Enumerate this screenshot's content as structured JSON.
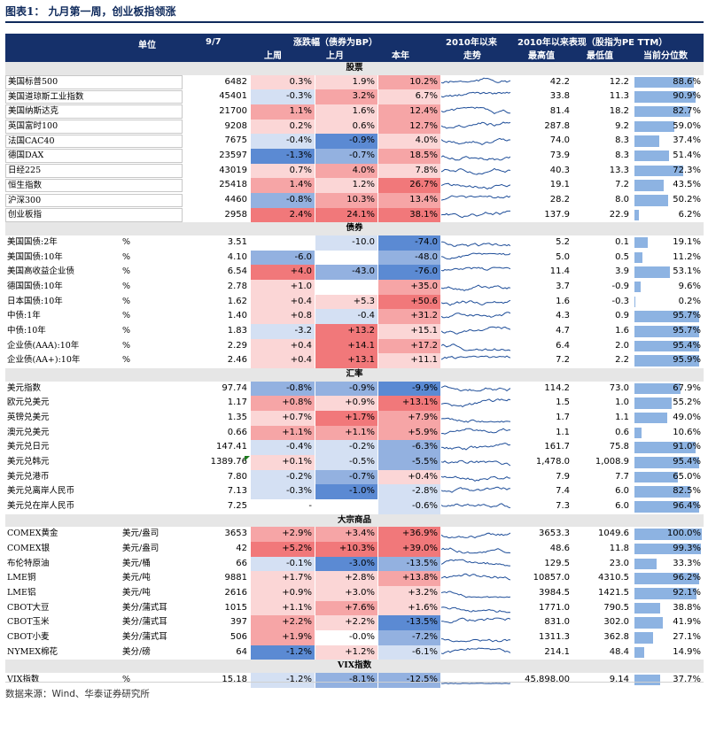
{
  "title": "图表1： 九月第一周，创业板指领涨",
  "header": {
    "unit": "单位",
    "date": "9/7",
    "change_group": "涨跌幅（债券为BP）",
    "week": "上周",
    "month": "上月",
    "ytd": "本年",
    "trend_top": "2010年以来",
    "trend_bottom": "走势",
    "since2010": "2010年以来表现（股指为PE TTM）",
    "high": "最高值",
    "low": "最低值",
    "pctile": "当前分位数"
  },
  "colors": {
    "header_bg": "#15306a",
    "section_bg": "#e6e6e6",
    "red_strong": "#f1787a",
    "red_mid": "#f6a5a6",
    "red_light": "#fbd6d6",
    "blue_strong": "#5b8ad3",
    "blue_mid": "#93b1e0",
    "blue_light": "#d4e0f3",
    "spark": "#1f4e99",
    "pct_bar": "#8db3e2"
  },
  "sections": [
    {
      "title": "股票",
      "rows": [
        {
          "name": "美国标普500",
          "unit": "",
          "value": "6482",
          "week": "0.3%",
          "month": "1.9%",
          "ytd": "10.2%",
          "high": "42.2",
          "low": "12.2",
          "pctile": "88.6%",
          "p": 0.886,
          "cw": 0.15,
          "cm": 0.3,
          "cy": 0.45,
          "box": true
        },
        {
          "name": "美国道琼斯工业指数",
          "unit": "",
          "value": "45401",
          "week": "-0.3%",
          "month": "3.2%",
          "ytd": "6.7%",
          "high": "33.8",
          "low": "11.3",
          "pctile": "90.9%",
          "p": 0.909,
          "cw": -0.15,
          "cm": 0.4,
          "cy": 0.3,
          "box": true
        },
        {
          "name": "美国纳斯达克",
          "unit": "",
          "value": "21700",
          "week": "1.1%",
          "month": "1.6%",
          "ytd": "12.4%",
          "high": "81.4",
          "low": "18.2",
          "pctile": "82.7%",
          "p": 0.827,
          "cw": 0.45,
          "cm": 0.3,
          "cy": 0.5,
          "box": true
        },
        {
          "name": "英国富时100",
          "unit": "",
          "value": "9208",
          "week": "0.2%",
          "month": "0.6%",
          "ytd": "12.7%",
          "high": "287.8",
          "low": "9.2",
          "pctile": "59.0%",
          "p": 0.59,
          "cw": 0.1,
          "cm": 0.15,
          "cy": 0.5,
          "box": true
        },
        {
          "name": "法国CAC40",
          "unit": "",
          "value": "7675",
          "week": "-0.4%",
          "month": "-0.9%",
          "ytd": "4.0%",
          "high": "74.0",
          "low": "8.3",
          "pctile": "37.4%",
          "p": 0.374,
          "cw": -0.3,
          "cm": -0.8,
          "cy": 0.15,
          "box": true
        },
        {
          "name": "德国DAX",
          "unit": "",
          "value": "23597",
          "week": "-1.3%",
          "month": "-0.7%",
          "ytd": "18.5%",
          "high": "73.9",
          "low": "8.3",
          "pctile": "51.4%",
          "p": 0.514,
          "cw": -0.8,
          "cm": -0.5,
          "cy": 0.6,
          "box": true
        },
        {
          "name": "日经225",
          "unit": "",
          "value": "43019",
          "week": "0.7%",
          "month": "4.0%",
          "ytd": "7.8%",
          "high": "40.3",
          "low": "13.3",
          "pctile": "72.3%",
          "p": 0.723,
          "cw": 0.3,
          "cm": 0.45,
          "cy": 0.3,
          "box": true
        },
        {
          "name": "恒生指数",
          "unit": "",
          "value": "25418",
          "week": "1.4%",
          "month": "1.2%",
          "ytd": "26.7%",
          "high": "19.1",
          "low": "7.2",
          "pctile": "43.5%",
          "p": 0.435,
          "cw": 0.55,
          "cm": 0.3,
          "cy": 0.85,
          "box": true
        },
        {
          "name": "沪深300",
          "unit": "",
          "value": "4460",
          "week": "-0.8%",
          "month": "10.3%",
          "ytd": "13.4%",
          "high": "28.2",
          "low": "8.0",
          "pctile": "50.2%",
          "p": 0.502,
          "cw": -0.5,
          "cm": 0.65,
          "cy": 0.5,
          "box": true
        },
        {
          "name": "创业板指",
          "unit": "",
          "value": "2958",
          "week": "2.4%",
          "month": "24.1%",
          "ytd": "38.1%",
          "high": "137.9",
          "low": "22.9",
          "pctile": "6.2%",
          "p": 0.062,
          "cw": 0.85,
          "cm": 0.9,
          "cy": 0.95,
          "box": true
        }
      ]
    },
    {
      "title": "债券",
      "rows": [
        {
          "name": "美国国债:2年",
          "unit": "%",
          "value": "3.51",
          "week": "",
          "month": "-10.0",
          "ytd": "-74.0",
          "high": "5.2",
          "low": "0.1",
          "pctile": "19.1%",
          "p": 0.191,
          "cw": 0,
          "cm": -0.15,
          "cy": -0.95
        },
        {
          "name": "美国国债:10年",
          "unit": "%",
          "value": "4.10",
          "week": "-6.0",
          "month": "",
          "ytd": "-48.0",
          "high": "5.0",
          "low": "0.5",
          "pctile": "11.2%",
          "p": 0.112,
          "cw": -0.55,
          "cm": 0,
          "cy": -0.6
        },
        {
          "name": "美国高收益企业债",
          "unit": "%",
          "value": "6.54",
          "week": "+4.0",
          "month": "-43.0",
          "ytd": "-76.0",
          "high": "11.4",
          "low": "3.9",
          "pctile": "53.1%",
          "p": 0.531,
          "cw": 0.85,
          "cm": -0.65,
          "cy": -0.95
        },
        {
          "name": "德国国债:10年",
          "unit": "%",
          "value": "2.78",
          "week": "+1.0",
          "month": "",
          "ytd": "+35.0",
          "high": "3.7",
          "low": "-0.9",
          "pctile": "9.6%",
          "p": 0.096,
          "cw": 0.2,
          "cm": 0,
          "cy": 0.55
        },
        {
          "name": "日本国债:10年",
          "unit": "%",
          "value": "1.62",
          "week": "+0.4",
          "month": "+5.3",
          "ytd": "+50.6",
          "high": "1.6",
          "low": "-0.3",
          "pctile": "0.2%",
          "p": 0.002,
          "cw": 0.1,
          "cm": 0.35,
          "cy": 0.8
        },
        {
          "name": "中债:1年",
          "unit": "%",
          "value": "1.40",
          "week": "+0.8",
          "month": "-0.4",
          "ytd": "+31.2",
          "high": "4.3",
          "low": "0.9",
          "pctile": "95.7%",
          "p": 0.957,
          "cw": 0.15,
          "cm": -0.1,
          "cy": 0.5
        },
        {
          "name": "中债:10年",
          "unit": "%",
          "value": "1.83",
          "week": "-3.2",
          "month": "+13.2",
          "ytd": "+15.1",
          "high": "4.7",
          "low": "1.6",
          "pctile": "95.7%",
          "p": 0.957,
          "cw": -0.35,
          "cm": 0.8,
          "cy": 0.35
        },
        {
          "name": "企业债(AAA):10年",
          "unit": "%",
          "value": "2.29",
          "week": "+0.4",
          "month": "+14.1",
          "ytd": "+17.2",
          "high": "6.4",
          "low": "2.0",
          "pctile": "95.4%",
          "p": 0.954,
          "cw": 0.1,
          "cm": 0.8,
          "cy": 0.4
        },
        {
          "name": "企业债(AA+):10年",
          "unit": "%",
          "value": "2.46",
          "week": "+0.4",
          "month": "+13.1",
          "ytd": "+11.1",
          "high": "7.2",
          "low": "2.2",
          "pctile": "95.9%",
          "p": 0.959,
          "cw": 0.1,
          "cm": 0.8,
          "cy": 0.3
        }
      ]
    },
    {
      "title": "汇率",
      "rows": [
        {
          "name": "美元指数",
          "unit": "",
          "value": "97.74",
          "week": "-0.8%",
          "month": "-0.9%",
          "ytd": "-9.9%",
          "high": "114.2",
          "low": "73.0",
          "pctile": "67.9%",
          "p": 0.679,
          "cw": -0.55,
          "cm": -0.5,
          "cy": -0.8
        },
        {
          "name": "欧元兑美元",
          "unit": "",
          "value": "1.17",
          "week": "+0.8%",
          "month": "+0.9%",
          "ytd": "+13.1%",
          "high": "1.5",
          "low": "1.0",
          "pctile": "55.2%",
          "p": 0.552,
          "cw": 0.4,
          "cm": 0.35,
          "cy": 0.9
        },
        {
          "name": "英镑兑美元",
          "unit": "",
          "value": "1.35",
          "week": "+0.7%",
          "month": "+1.7%",
          "ytd": "+7.9%",
          "high": "1.7",
          "low": "1.1",
          "pctile": "49.0%",
          "p": 0.49,
          "cw": 0.35,
          "cm": 0.8,
          "cy": 0.5
        },
        {
          "name": "澳元兑美元",
          "unit": "",
          "value": "0.66",
          "week": "+1.1%",
          "month": "+1.1%",
          "ytd": "+5.9%",
          "high": "1.1",
          "low": "0.6",
          "pctile": "10.6%",
          "p": 0.106,
          "cw": 0.7,
          "cm": 0.45,
          "cy": 0.4
        },
        {
          "name": "美元兑日元",
          "unit": "",
          "value": "147.41",
          "week": "-0.4%",
          "month": "-0.2%",
          "ytd": "-6.3%",
          "high": "161.7",
          "low": "75.8",
          "pctile": "91.0%",
          "p": 0.91,
          "cw": -0.2,
          "cm": -0.1,
          "cy": -0.5
        },
        {
          "name": "美元兑韩元",
          "unit": "",
          "value": "1389.76",
          "week": "+0.1%",
          "month": "-0.5%",
          "ytd": "-5.5%",
          "high": "1,478.0",
          "low": "1,008.9",
          "pctile": "95.4%",
          "p": 0.954,
          "cw": 0.05,
          "cm": -0.3,
          "cy": -0.45,
          "flag": true
        },
        {
          "name": "美元兑港币",
          "unit": "",
          "value": "7.80",
          "week": "-0.2%",
          "month": "-0.7%",
          "ytd": "+0.4%",
          "high": "7.9",
          "low": "7.7",
          "pctile": "65.0%",
          "p": 0.65,
          "cw": -0.1,
          "cm": -0.5,
          "cy": 0.05
        },
        {
          "name": "美元兑离岸人民币",
          "unit": "",
          "value": "7.13",
          "week": "-0.3%",
          "month": "-1.0%",
          "ytd": "-2.8%",
          "high": "7.4",
          "low": "6.0",
          "pctile": "82.5%",
          "p": 0.825,
          "cw": -0.2,
          "cm": -0.8,
          "cy": -0.25
        },
        {
          "name": "美元兑在岸人民币",
          "unit": "",
          "value": "7.25",
          "week": "-",
          "month": "",
          "ytd": "-0.6%",
          "high": "7.3",
          "low": "6.0",
          "pctile": "96.4%",
          "p": 0.964,
          "cw": 0,
          "cm": 0,
          "cy": -0.05
        }
      ]
    },
    {
      "title": "大宗商品",
      "rows": [
        {
          "name": "COMEX黄金",
          "unit": "美元/盎司",
          "value": "3653",
          "week": "+2.9%",
          "month": "+3.4%",
          "ytd": "+36.9%",
          "high": "3653.3",
          "low": "1049.6",
          "pctile": "100.0%",
          "p": 1.0,
          "cw": 0.65,
          "cm": 0.5,
          "cy": 0.85
        },
        {
          "name": "COMEX银",
          "unit": "美元/盎司",
          "value": "42",
          "week": "+5.2%",
          "month": "+10.3%",
          "ytd": "+39.0%",
          "high": "48.6",
          "low": "11.8",
          "pctile": "99.3%",
          "p": 0.993,
          "cw": 0.85,
          "cm": 0.9,
          "cy": 0.9
        },
        {
          "name": "布伦特原油",
          "unit": "美元/桶",
          "value": "66",
          "week": "-0.1%",
          "month": "-3.0%",
          "ytd": "-13.5%",
          "high": "129.5",
          "low": "23.0",
          "pctile": "33.3%",
          "p": 0.333,
          "cw": -0.05,
          "cm": -0.8,
          "cy": -0.55
        },
        {
          "name": "LME铜",
          "unit": "美元/吨",
          "value": "9881",
          "week": "+1.7%",
          "month": "+2.8%",
          "ytd": "+13.8%",
          "high": "10857.0",
          "low": "4310.5",
          "pctile": "96.2%",
          "p": 0.962,
          "cw": 0.3,
          "cm": 0.3,
          "cy": 0.5
        },
        {
          "name": "LME铝",
          "unit": "美元/吨",
          "value": "2616",
          "week": "+0.9%",
          "month": "+3.0%",
          "ytd": "+3.2%",
          "high": "3984.5",
          "low": "1421.5",
          "pctile": "92.1%",
          "p": 0.921,
          "cw": 0.2,
          "cm": 0.3,
          "cy": 0.15
        },
        {
          "name": "CBOT大豆",
          "unit": "美分/蒲式耳",
          "value": "1015",
          "week": "+1.1%",
          "month": "+7.6%",
          "ytd": "+1.6%",
          "high": "1771.0",
          "low": "790.5",
          "pctile": "38.8%",
          "p": 0.388,
          "cw": 0.25,
          "cm": 0.7,
          "cy": 0.1
        },
        {
          "name": "CBOT玉米",
          "unit": "美分/蒲式耳",
          "value": "397",
          "week": "+2.2%",
          "month": "+2.2%",
          "ytd": "-13.5%",
          "high": "831.0",
          "low": "302.0",
          "pctile": "41.9%",
          "p": 0.419,
          "cw": 0.45,
          "cm": 0.3,
          "cy": -0.8
        },
        {
          "name": "CBOT小麦",
          "unit": "美分/蒲式耳",
          "value": "506",
          "week": "+1.9%",
          "month": "-0.0%",
          "ytd": "-7.2%",
          "high": "1311.3",
          "low": "362.8",
          "pctile": "27.1%",
          "p": 0.271,
          "cw": 0.4,
          "cm": 0,
          "cy": -0.4
        },
        {
          "name": "NYMEX棉花",
          "unit": "美分/磅",
          "value": "64",
          "week": "-1.2%",
          "month": "+1.2%",
          "ytd": "-6.1%",
          "high": "214.1",
          "low": "48.4",
          "pctile": "14.9%",
          "p": 0.149,
          "cw": -0.85,
          "cm": 0.15,
          "cy": -0.35
        }
      ]
    },
    {
      "title": "VIX指数",
      "rows": [
        {
          "name": "VIX指数",
          "unit": "%",
          "value": "15.18",
          "week": "-1.2%",
          "month": "-8.1%",
          "ytd": "-12.5%",
          "high": "45,898.00",
          "low": "9.14",
          "pctile": "37.7%",
          "p": 0.377,
          "cw": -0.1,
          "cm": -0.55,
          "cy": -0.6,
          "flatspark": true
        }
      ]
    }
  ],
  "footer": "数据来源：Wind、华泰证券研究所"
}
